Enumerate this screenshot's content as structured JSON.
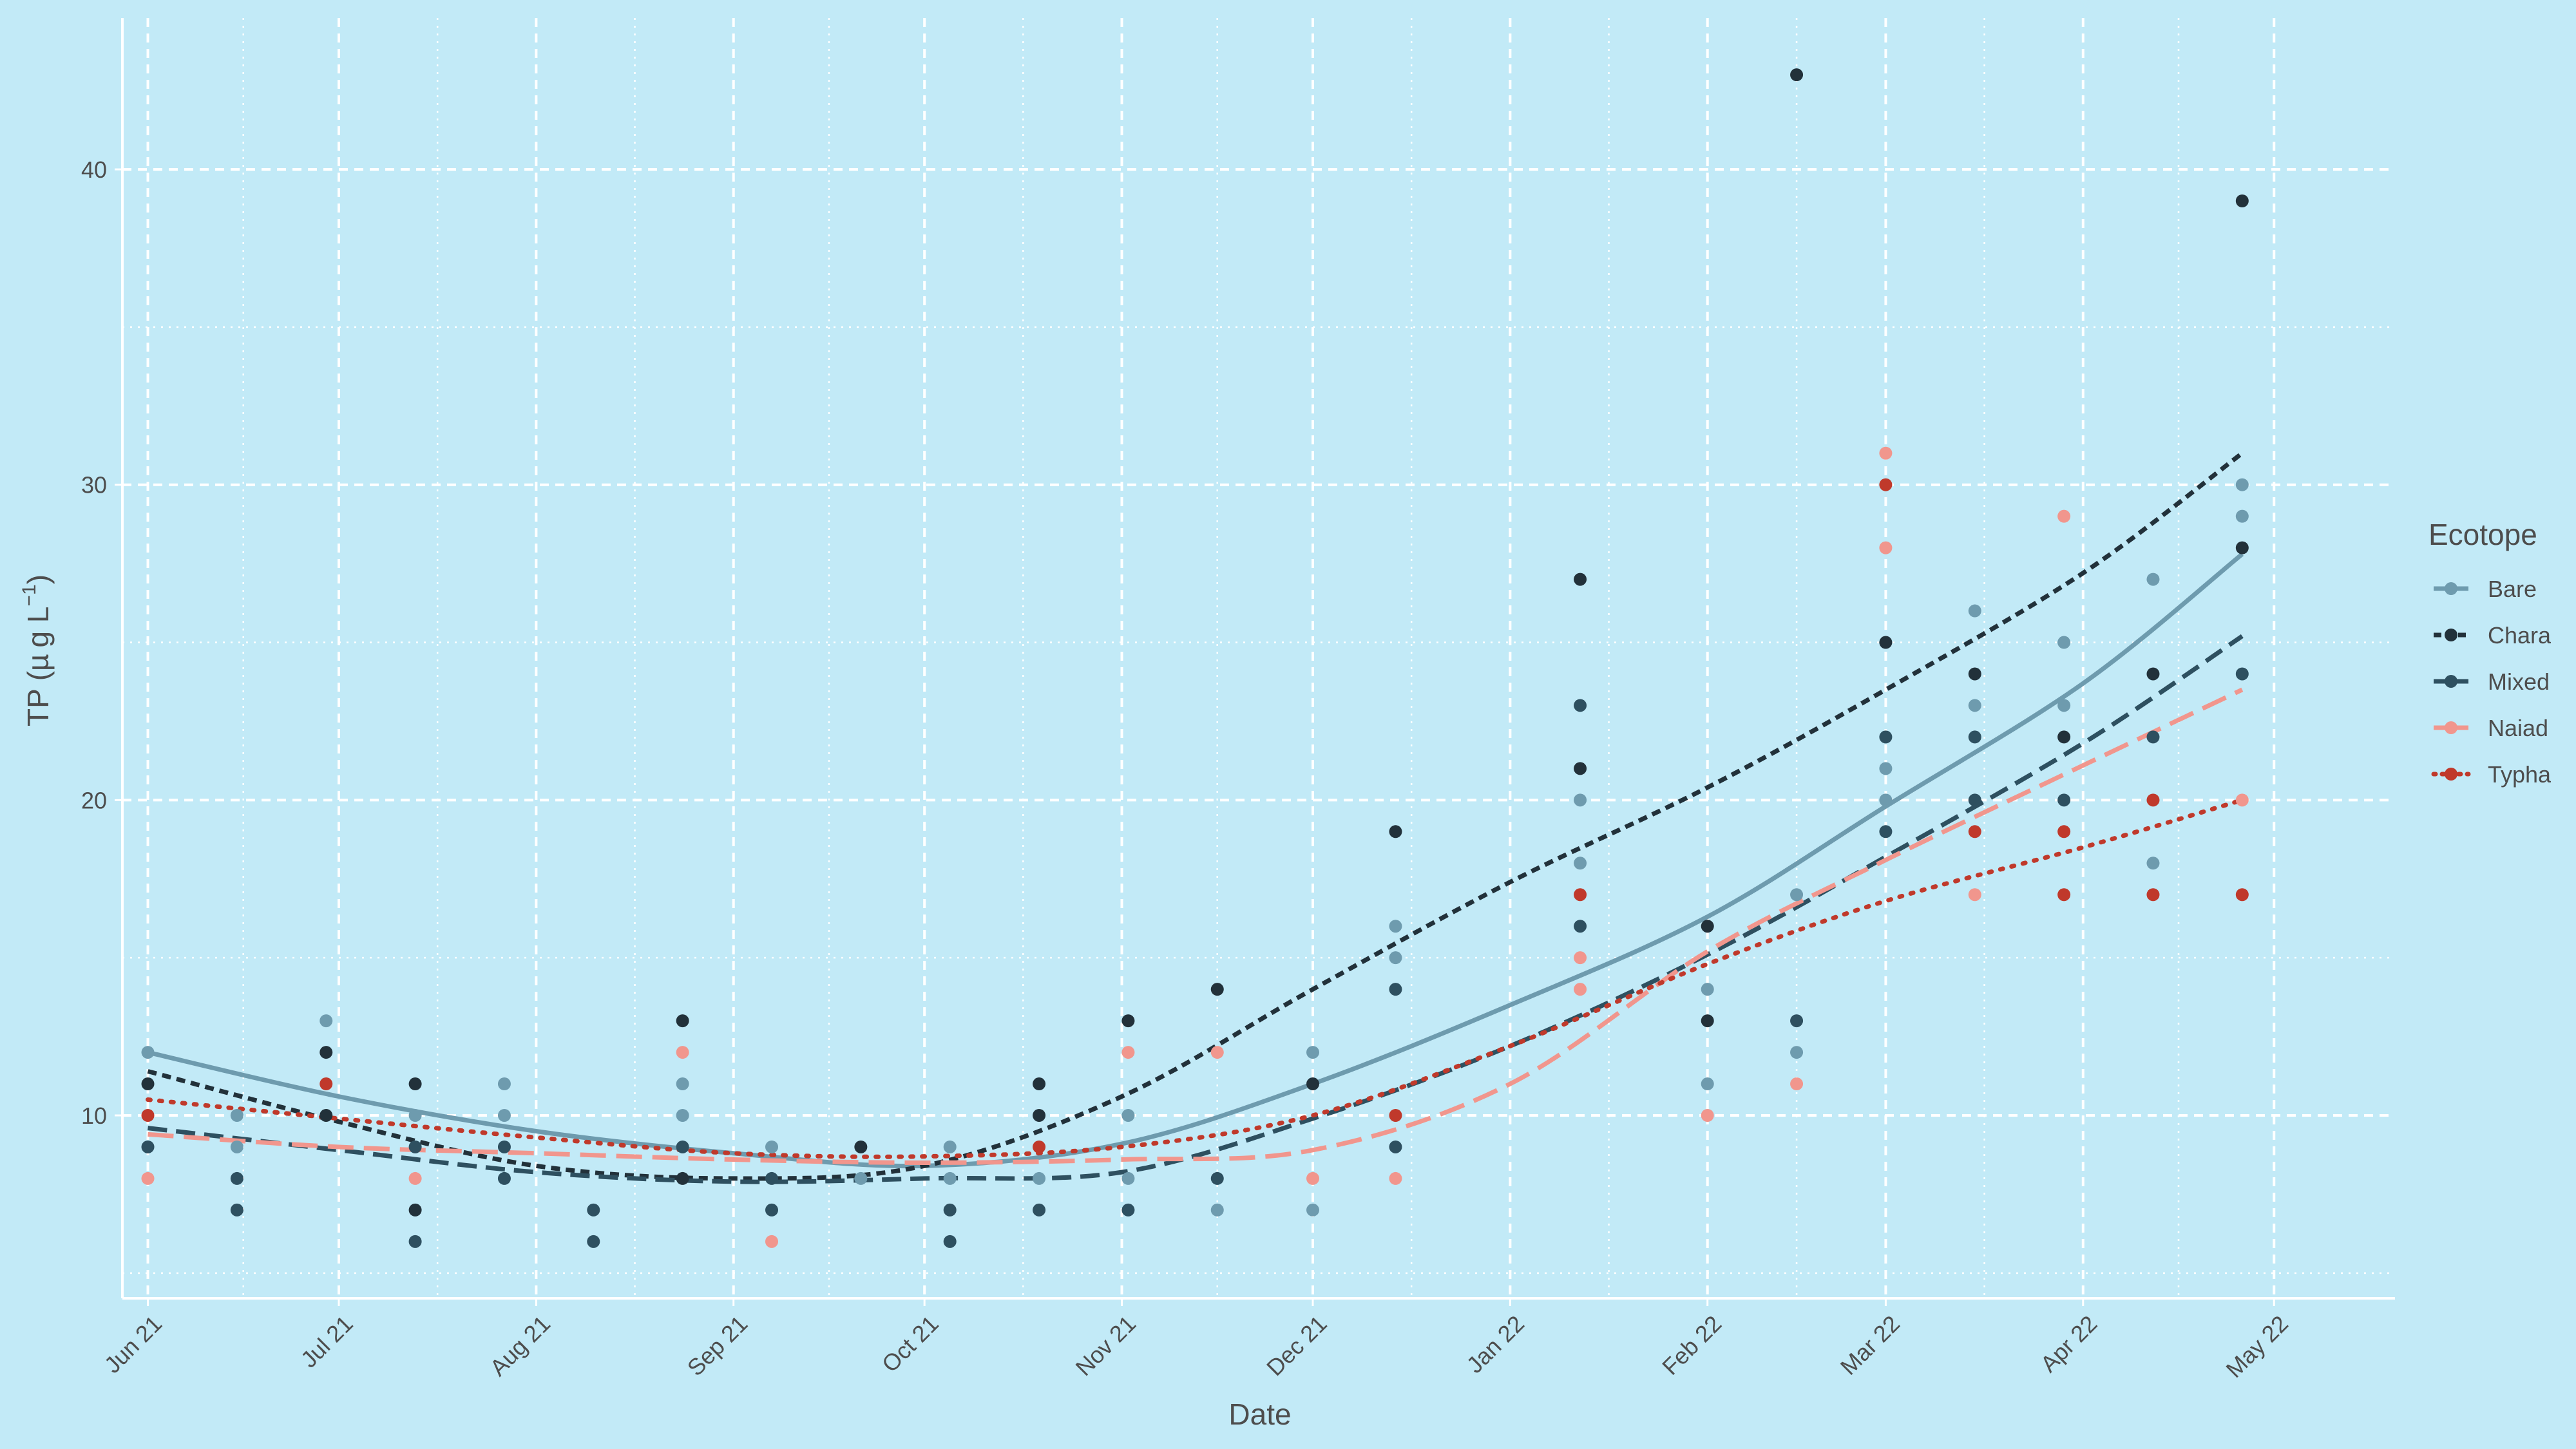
{
  "chart_data": {
    "type": "scatter",
    "xlabel": "Date",
    "ylabel_main": "TP (",
    "ylabel_mu": "µ",
    "ylabel_unit": "g L",
    "ylabel_exp": "−1",
    "ylabel_close": ")",
    "legend_title": "Ecotope",
    "legend_position": "right",
    "grid": true,
    "x_range": [
      "2021-05-28",
      "2022-05-20"
    ],
    "ylim": [
      4.2,
      44.8
    ],
    "x_ticks": [
      {
        "label": "Jun 21",
        "date": "2021-06-01"
      },
      {
        "label": "Jul 21",
        "date": "2021-07-01"
      },
      {
        "label": "Aug 21",
        "date": "2021-08-01"
      },
      {
        "label": "Sep 21",
        "date": "2021-09-01"
      },
      {
        "label": "Oct 21",
        "date": "2021-10-01"
      },
      {
        "label": "Nov 21",
        "date": "2021-11-01"
      },
      {
        "label": "Dec 21",
        "date": "2021-12-01"
      },
      {
        "label": "Jan 22",
        "date": "2022-01-01"
      },
      {
        "label": "Feb 22",
        "date": "2022-02-01"
      },
      {
        "label": "Mar 22",
        "date": "2022-03-01"
      },
      {
        "label": "Apr 22",
        "date": "2022-04-01"
      },
      {
        "label": "May 22",
        "date": "2022-05-01"
      }
    ],
    "y_ticks": [
      {
        "label": "10",
        "value": 10
      },
      {
        "label": "20",
        "value": 20
      },
      {
        "label": "30",
        "value": 30
      },
      {
        "label": "40",
        "value": 40
      }
    ],
    "series": [
      {
        "name": "Bare",
        "color": "#6e9bae",
        "dash": "solid",
        "points": [
          [
            "2021-06-01",
            12
          ],
          [
            "2021-06-15",
            10
          ],
          [
            "2021-06-15",
            9
          ],
          [
            "2021-06-29",
            13
          ],
          [
            "2021-07-13",
            10
          ],
          [
            "2021-07-27",
            11
          ],
          [
            "2021-07-27",
            10
          ],
          [
            "2021-08-24",
            11
          ],
          [
            "2021-08-24",
            10
          ],
          [
            "2021-09-07",
            9
          ],
          [
            "2021-09-21",
            8
          ],
          [
            "2021-10-05",
            9
          ],
          [
            "2021-10-05",
            8
          ],
          [
            "2021-10-19",
            8
          ],
          [
            "2021-11-02",
            10
          ],
          [
            "2021-11-02",
            8
          ],
          [
            "2021-11-16",
            7
          ],
          [
            "2021-12-01",
            12
          ],
          [
            "2021-12-01",
            7
          ],
          [
            "2021-12-14",
            16
          ],
          [
            "2021-12-14",
            15
          ],
          [
            "2022-01-12",
            20
          ],
          [
            "2022-01-12",
            18
          ],
          [
            "2022-02-01",
            14
          ],
          [
            "2022-02-01",
            11
          ],
          [
            "2022-02-15",
            17
          ],
          [
            "2022-02-15",
            12
          ],
          [
            "2022-03-01",
            21
          ],
          [
            "2022-03-01",
            20
          ],
          [
            "2022-03-15",
            26
          ],
          [
            "2022-03-15",
            23
          ],
          [
            "2022-03-29",
            25
          ],
          [
            "2022-03-29",
            23
          ],
          [
            "2022-04-12",
            27
          ],
          [
            "2022-04-12",
            18
          ],
          [
            "2022-04-26",
            30
          ],
          [
            "2022-04-26",
            29
          ]
        ],
        "trend": [
          [
            "2021-06-01",
            12
          ],
          [
            "2021-07-01",
            10.6
          ],
          [
            "2021-08-01",
            9.5
          ],
          [
            "2021-09-01",
            8.8
          ],
          [
            "2021-10-01",
            8.4
          ],
          [
            "2021-11-01",
            9.1
          ],
          [
            "2021-12-01",
            11
          ],
          [
            "2022-01-01",
            13.5
          ],
          [
            "2022-02-01",
            16.3
          ],
          [
            "2022-03-01",
            19.8
          ],
          [
            "2022-04-01",
            23.7
          ],
          [
            "2022-04-26",
            27.8
          ]
        ]
      },
      {
        "name": "Chara",
        "color": "#22313a",
        "dash": "short",
        "points": [
          [
            "2021-06-01",
            11
          ],
          [
            "2021-06-29",
            12
          ],
          [
            "2021-06-29",
            10
          ],
          [
            "2021-07-13",
            11
          ],
          [
            "2021-07-13",
            7
          ],
          [
            "2021-08-24",
            13
          ],
          [
            "2021-08-24",
            8
          ],
          [
            "2021-09-21",
            9
          ],
          [
            "2021-10-19",
            11
          ],
          [
            "2021-10-19",
            10
          ],
          [
            "2021-11-02",
            13
          ],
          [
            "2021-11-16",
            14
          ],
          [
            "2021-12-01",
            11
          ],
          [
            "2021-12-14",
            19
          ],
          [
            "2022-01-12",
            27
          ],
          [
            "2022-01-12",
            21
          ],
          [
            "2022-02-01",
            16
          ],
          [
            "2022-02-01",
            13
          ],
          [
            "2022-02-15",
            43
          ],
          [
            "2022-03-01",
            25
          ],
          [
            "2022-03-15",
            24
          ],
          [
            "2022-03-29",
            22
          ],
          [
            "2022-04-12",
            24
          ],
          [
            "2022-04-26",
            39
          ],
          [
            "2022-04-26",
            28
          ]
        ],
        "trend": [
          [
            "2021-06-01",
            11.4
          ],
          [
            "2021-07-01",
            9.8
          ],
          [
            "2021-08-01",
            8.4
          ],
          [
            "2021-09-01",
            8
          ],
          [
            "2021-10-01",
            8.4
          ],
          [
            "2021-11-01",
            10.6
          ],
          [
            "2021-12-01",
            14
          ],
          [
            "2022-01-01",
            17.4
          ],
          [
            "2022-02-01",
            20.4
          ],
          [
            "2022-03-01",
            23.5
          ],
          [
            "2022-04-01",
            27.2
          ],
          [
            "2022-04-26",
            31
          ]
        ]
      },
      {
        "name": "Mixed",
        "color": "#2e5060",
        "dash": "long",
        "points": [
          [
            "2021-06-01",
            9
          ],
          [
            "2021-06-15",
            8
          ],
          [
            "2021-06-15",
            7
          ],
          [
            "2021-07-13",
            9
          ],
          [
            "2021-07-13",
            6
          ],
          [
            "2021-07-27",
            9
          ],
          [
            "2021-07-27",
            8
          ],
          [
            "2021-08-10",
            7
          ],
          [
            "2021-08-10",
            6
          ],
          [
            "2021-08-24",
            9
          ],
          [
            "2021-09-07",
            8
          ],
          [
            "2021-09-07",
            7
          ],
          [
            "2021-10-05",
            7
          ],
          [
            "2021-10-05",
            6
          ],
          [
            "2021-10-19",
            7
          ],
          [
            "2021-11-02",
            7
          ],
          [
            "2021-11-16",
            8
          ],
          [
            "2021-12-14",
            14
          ],
          [
            "2021-12-14",
            9
          ],
          [
            "2022-01-12",
            23
          ],
          [
            "2022-01-12",
            16
          ],
          [
            "2022-02-15",
            13
          ],
          [
            "2022-03-01",
            22
          ],
          [
            "2022-03-01",
            19
          ],
          [
            "2022-03-15",
            22
          ],
          [
            "2022-03-15",
            20
          ],
          [
            "2022-03-29",
            20
          ],
          [
            "2022-04-12",
            22
          ],
          [
            "2022-04-26",
            24
          ]
        ],
        "trend": [
          [
            "2021-06-01",
            9.6
          ],
          [
            "2021-07-01",
            8.9
          ],
          [
            "2021-08-01",
            8.2
          ],
          [
            "2021-09-01",
            7.9
          ],
          [
            "2021-10-01",
            8
          ],
          [
            "2021-11-01",
            8.2
          ],
          [
            "2021-12-01",
            9.9
          ],
          [
            "2022-01-01",
            12.2
          ],
          [
            "2022-02-01",
            15.1
          ],
          [
            "2022-03-01",
            18.2
          ],
          [
            "2022-04-01",
            21.8
          ],
          [
            "2022-04-26",
            25.2
          ]
        ]
      },
      {
        "name": "Naiad",
        "color": "#f1968d",
        "dash": "longer",
        "points": [
          [
            "2021-06-01",
            8
          ],
          [
            "2021-07-13",
            8
          ],
          [
            "2021-08-24",
            12
          ],
          [
            "2021-09-07",
            6
          ],
          [
            "2021-11-02",
            12
          ],
          [
            "2021-11-16",
            12
          ],
          [
            "2021-12-01",
            8
          ],
          [
            "2021-12-14",
            8
          ],
          [
            "2022-01-12",
            15
          ],
          [
            "2022-01-12",
            14
          ],
          [
            "2022-02-01",
            10
          ],
          [
            "2022-02-15",
            11
          ],
          [
            "2022-03-01",
            31
          ],
          [
            "2022-03-01",
            28
          ],
          [
            "2022-03-15",
            17
          ],
          [
            "2022-03-29",
            29
          ],
          [
            "2022-04-26",
            20
          ]
        ],
        "trend": [
          [
            "2021-06-01",
            9.4
          ],
          [
            "2021-07-01",
            9
          ],
          [
            "2021-08-01",
            8.8
          ],
          [
            "2021-09-01",
            8.6
          ],
          [
            "2021-10-01",
            8.5
          ],
          [
            "2021-11-01",
            8.6
          ],
          [
            "2021-12-01",
            8.9
          ],
          [
            "2022-01-01",
            11
          ],
          [
            "2022-02-01",
            15.2
          ],
          [
            "2022-03-01",
            18.1
          ],
          [
            "2022-04-01",
            21.1
          ],
          [
            "2022-04-26",
            23.5
          ]
        ]
      },
      {
        "name": "Typha",
        "color": "#c0392b",
        "dash": "dot",
        "points": [
          [
            "2021-06-01",
            10
          ],
          [
            "2021-06-29",
            11
          ],
          [
            "2021-10-19",
            9
          ],
          [
            "2021-12-14",
            10
          ],
          [
            "2022-01-12",
            17
          ],
          [
            "2022-03-01",
            30
          ],
          [
            "2022-03-15",
            19
          ],
          [
            "2022-03-29",
            19
          ],
          [
            "2022-03-29",
            17
          ],
          [
            "2022-04-12",
            20
          ],
          [
            "2022-04-12",
            17
          ],
          [
            "2022-04-26",
            17
          ]
        ],
        "trend": [
          [
            "2021-06-01",
            10.5
          ],
          [
            "2021-07-01",
            9.9
          ],
          [
            "2021-08-01",
            9.3
          ],
          [
            "2021-09-01",
            8.8
          ],
          [
            "2021-10-01",
            8.7
          ],
          [
            "2021-11-01",
            9
          ],
          [
            "2021-12-01",
            10
          ],
          [
            "2022-01-01",
            12.2
          ],
          [
            "2022-02-01",
            14.8
          ],
          [
            "2022-03-01",
            16.8
          ],
          [
            "2022-04-01",
            18.5
          ],
          [
            "2022-04-26",
            20
          ]
        ]
      }
    ]
  }
}
